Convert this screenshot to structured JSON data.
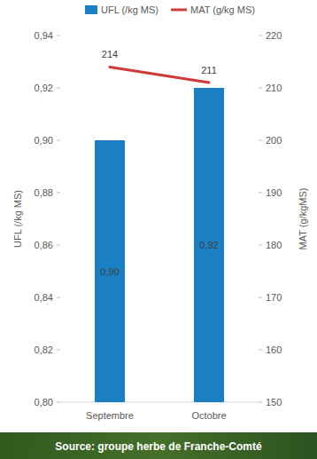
{
  "chart_data": {
    "type": "bar",
    "categories": [
      "Septembre",
      "Octobre"
    ],
    "series": [
      {
        "name": "UFL (/kg MS)",
        "type": "bar",
        "color": "#1b7fc4",
        "values": [
          0.9,
          0.92
        ],
        "value_labels": [
          "0,90",
          "0,92"
        ]
      },
      {
        "name": "MAT (g/kg MS)",
        "type": "line",
        "axis": "y2",
        "color": "#d23a3a",
        "values": [
          214,
          211
        ]
      }
    ],
    "ylabel": "UFL (/kg MS)",
    "y2label": "MAT (g/kgMS)",
    "ylim": [
      0.8,
      0.94
    ],
    "yticks": [
      {
        "value": 0.8,
        "label": "0,80"
      },
      {
        "value": 0.82,
        "label": "0,82"
      },
      {
        "value": 0.84,
        "label": "0,84"
      },
      {
        "value": 0.86,
        "label": "0,86"
      },
      {
        "value": 0.88,
        "label": "0,88"
      },
      {
        "value": 0.9,
        "label": "0,90"
      },
      {
        "value": 0.92,
        "label": "0,92"
      },
      {
        "value": 0.94,
        "label": "0,94"
      }
    ],
    "y2lim": [
      150,
      220
    ],
    "y2ticks": [
      150,
      160,
      170,
      180,
      190,
      200,
      210,
      220
    ],
    "grid": false,
    "legend": "top",
    "data_labels": true,
    "source": "Source: groupe herbe de Franche-Comté"
  }
}
